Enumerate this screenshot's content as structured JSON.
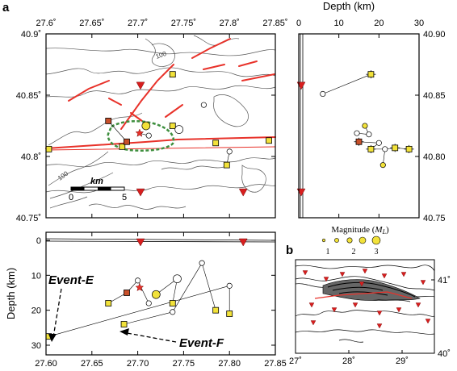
{
  "panel_labels": {
    "a": "a",
    "b": "b"
  },
  "map": {
    "lon_ticks": [
      "27.6˚",
      "27.65˚",
      "27.7˚",
      "27.75˚",
      "27.8˚",
      "27.85˚"
    ],
    "lat_ticks": [
      "40.9˚",
      "40.85˚",
      "40.8˚",
      "40.75˚"
    ],
    "scale_bar": {
      "title": "km",
      "left": "0",
      "right": "5"
    },
    "contour_labels": [
      "100",
      "100"
    ]
  },
  "depth_profile_right": {
    "title": "Depth (km)",
    "x_ticks": [
      "0",
      "10",
      "20",
      "30"
    ],
    "y_ticks": [
      "40.90",
      "40.85",
      "40.80",
      "40.75"
    ]
  },
  "depth_section": {
    "ylabel": "Depth (km)",
    "y_ticks": [
      "0",
      "10",
      "20",
      "30"
    ],
    "x_ticks": [
      "27.60",
      "27.65",
      "27.70",
      "27.75",
      "27.80",
      "27.85"
    ]
  },
  "legend": {
    "title_prefix": "Magnitude (",
    "title_symbol": "M",
    "title_sub": "L",
    "title_suffix": ")",
    "labels": [
      "1",
      "2",
      "3"
    ]
  },
  "inset": {
    "lat_ticks": [
      "41˚",
      "40˚"
    ],
    "lon_ticks": [
      "27˚",
      "28˚",
      "29˚"
    ]
  },
  "annotations": {
    "event_e": "Event-E",
    "event_f": "Event-F"
  },
  "colors": {
    "fault": "#e8322a",
    "station": "#d81e1e",
    "aftershock_fill": "#f2e23a",
    "mainshock": "#c8502a",
    "hypocenter_zone": "#3e8f3e",
    "contour": "#555555"
  },
  "chart_data": [
    {
      "type": "scatter",
      "panel": "epicenter map",
      "x_axis": "longitude (deg E)",
      "y_axis": "latitude (deg N)",
      "xlim": [
        27.6,
        27.85
      ],
      "ylim": [
        40.75,
        40.9
      ],
      "events": [
        {
          "lon": 27.603,
          "lat": 40.806,
          "marker": "square",
          "fill": "yellow"
        },
        {
          "lon": 27.668,
          "lat": 40.829,
          "marker": "square",
          "fill": "orange"
        },
        {
          "lon": 27.683,
          "lat": 40.808,
          "marker": "square",
          "fill": "yellow"
        },
        {
          "lon": 27.688,
          "lat": 40.812,
          "marker": "square",
          "fill": "orange"
        },
        {
          "lon": 27.702,
          "lat": 40.819,
          "marker": "star",
          "fill": "red"
        },
        {
          "lon": 27.709,
          "lat": 40.825,
          "marker": "circle",
          "fill": "yellow",
          "mag": 3
        },
        {
          "lon": 27.712,
          "lat": 40.817,
          "marker": "circle",
          "fill": "white"
        },
        {
          "lon": 27.738,
          "lat": 40.867,
          "marker": "square",
          "fill": "yellow"
        },
        {
          "lon": 27.738,
          "lat": 40.825,
          "marker": "square",
          "fill": "yellow"
        },
        {
          "lon": 27.745,
          "lat": 40.822,
          "marker": "circle",
          "fill": "white",
          "mag": 3
        },
        {
          "lon": 27.772,
          "lat": 40.842,
          "marker": "circle",
          "fill": "white"
        },
        {
          "lon": 27.785,
          "lat": 40.811,
          "marker": "square",
          "fill": "yellow"
        },
        {
          "lon": 27.797,
          "lat": 40.793,
          "marker": "square",
          "fill": "yellow"
        },
        {
          "lon": 27.8,
          "lat": 40.804,
          "marker": "circle",
          "fill": "white"
        },
        {
          "lon": 27.843,
          "lat": 40.813,
          "marker": "square",
          "fill": "yellow"
        }
      ],
      "stations": [
        {
          "lon": 27.703,
          "lat": 40.858
        },
        {
          "lon": 27.703,
          "lat": 40.771
        },
        {
          "lon": 27.815,
          "lat": 40.771
        }
      ]
    },
    {
      "type": "scatter",
      "panel": "latitude vs depth",
      "x_axis": "Depth (km)",
      "y_axis": "latitude (deg N)",
      "xlim": [
        0,
        30
      ],
      "ylim": [
        40.75,
        40.9
      ],
      "events": [
        {
          "depth": 6,
          "lat": 40.851,
          "marker": "circle",
          "fill": "white"
        },
        {
          "depth": 18,
          "lat": 40.867,
          "marker": "square",
          "fill": "yellow"
        },
        {
          "depth": 14.5,
          "lat": 40.819,
          "marker": "circle",
          "fill": "white"
        },
        {
          "depth": 16.5,
          "lat": 40.825,
          "marker": "circle",
          "fill": "yellow"
        },
        {
          "depth": 17.5,
          "lat": 40.818,
          "marker": "circle",
          "fill": "white"
        },
        {
          "depth": 15,
          "lat": 40.812,
          "marker": "square",
          "fill": "orange"
        },
        {
          "depth": 20,
          "lat": 40.811,
          "marker": "circle",
          "fill": "white"
        },
        {
          "depth": 18,
          "lat": 40.806,
          "marker": "square",
          "fill": "yellow"
        },
        {
          "depth": 21.5,
          "lat": 40.806,
          "marker": "circle",
          "fill": "white"
        },
        {
          "depth": 24,
          "lat": 40.807,
          "marker": "square",
          "fill": "yellow"
        },
        {
          "depth": 27.5,
          "lat": 40.806,
          "marker": "square",
          "fill": "yellow"
        },
        {
          "depth": 21,
          "lat": 40.793,
          "marker": "circle",
          "fill": "yellow"
        }
      ],
      "stations": [
        {
          "depth": 0,
          "lat": 40.858
        },
        {
          "depth": 0,
          "lat": 40.771
        }
      ]
    },
    {
      "type": "scatter",
      "panel": "longitude vs depth",
      "x_axis": "longitude (deg E)",
      "y_axis": "Depth (km)",
      "xlim": [
        27.6,
        27.85
      ],
      "ylim": [
        0,
        30
      ],
      "events": [
        {
          "lon": 27.603,
          "depth": 27.5,
          "marker": "square",
          "fill": "yellow",
          "label": "Event-E"
        },
        {
          "lon": 27.685,
          "depth": 24,
          "marker": "square",
          "fill": "yellow",
          "label": "Event-F"
        },
        {
          "lon": 27.668,
          "depth": 18,
          "marker": "square",
          "fill": "yellow"
        },
        {
          "lon": 27.688,
          "depth": 15,
          "marker": "square",
          "fill": "orange"
        },
        {
          "lon": 27.702,
          "depth": 13.5,
          "marker": "star",
          "fill": "red"
        },
        {
          "lon": 27.7,
          "depth": 11.5,
          "marker": "circle",
          "fill": "white"
        },
        {
          "lon": 27.712,
          "depth": 18,
          "marker": "circle",
          "fill": "white"
        },
        {
          "lon": 27.72,
          "depth": 15.5,
          "marker": "circle",
          "fill": "yellow",
          "mag": 3
        },
        {
          "lon": 27.738,
          "depth": 18,
          "marker": "square",
          "fill": "yellow"
        },
        {
          "lon": 27.738,
          "depth": 20.5,
          "marker": "circle",
          "fill": "white"
        },
        {
          "lon": 27.743,
          "depth": 11,
          "marker": "circle",
          "fill": "white",
          "mag": 3
        },
        {
          "lon": 27.77,
          "depth": 6.5,
          "marker": "circle",
          "fill": "white"
        },
        {
          "lon": 27.785,
          "depth": 20,
          "marker": "square",
          "fill": "yellow"
        },
        {
          "lon": 27.8,
          "depth": 13,
          "marker": "circle",
          "fill": "white"
        },
        {
          "lon": 27.8,
          "depth": 21,
          "marker": "square",
          "fill": "yellow"
        }
      ],
      "stations": [
        {
          "lon": 27.703,
          "depth": 0
        },
        {
          "lon": 27.815,
          "depth": 0
        }
      ]
    }
  ]
}
